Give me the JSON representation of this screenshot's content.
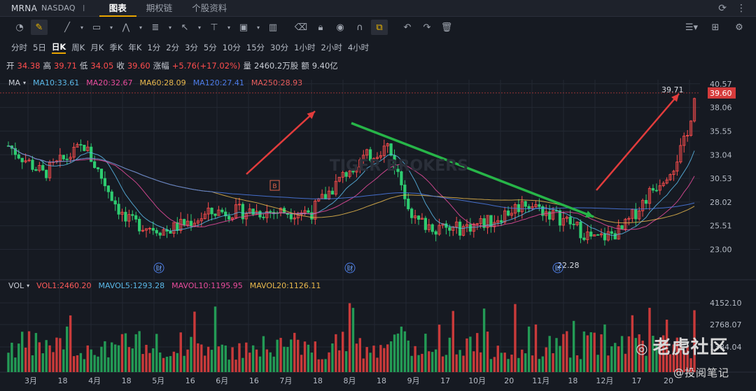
{
  "titlebar": {
    "symbol": "MRNA",
    "exchange": "NASDAQ",
    "divider": "I",
    "tabs": [
      "图表",
      "期权链",
      "个股资料"
    ],
    "active_tab": 0
  },
  "periods": {
    "items": [
      "分时",
      "5日",
      "日K",
      "周K",
      "月K",
      "季K",
      "年K",
      "1分",
      "2分",
      "3分",
      "5分",
      "10分",
      "15分",
      "30分",
      "1小时",
      "2小时",
      "4小时"
    ],
    "active": 2
  },
  "quote": {
    "open_label": "开",
    "open": "34.38",
    "high_label": "高",
    "high": "39.71",
    "low_label": "低",
    "low": "34.05",
    "close_label": "收",
    "close": "39.60",
    "change_label": "涨幅",
    "change": "+5.76(+17.02%)",
    "volume_label": "量",
    "volume": "2460.2万股",
    "amount_label": "额",
    "amount": "9.40亿"
  },
  "ma_legend": {
    "name": "MA",
    "items": [
      {
        "text": "MA10:33.61",
        "color": "#5ab8e8"
      },
      {
        "text": "MA20:32.67",
        "color": "#e84c9c"
      },
      {
        "text": "MA60:28.09",
        "color": "#e8b84c"
      },
      {
        "text": "MA120:27.41",
        "color": "#4c7ce8"
      },
      {
        "text": "MA250:28.93",
        "color": "#e85c5c"
      }
    ]
  },
  "vol_legend": {
    "name": "VOL",
    "items": [
      {
        "text": "VOL1:2460.20",
        "color": "#ff5a5a"
      },
      {
        "text": "MAVOL5:1293.28",
        "color": "#5ab8e8"
      },
      {
        "text": "MAVOL10:1195.95",
        "color": "#e84c9c"
      },
      {
        "text": "MAVOL20:1126.11",
        "color": "#e8b84c"
      }
    ]
  },
  "price_axis": {
    "ticks": [
      "40.57",
      "38.06",
      "35.55",
      "33.04",
      "30.53",
      "28.02",
      "25.51",
      "23.00"
    ],
    "current": "39.60"
  },
  "vol_axis": {
    "ticks": [
      "4152.10",
      "2768.07",
      "1384.04"
    ]
  },
  "x_axis": {
    "labels": [
      "3月",
      "18",
      "4月",
      "18",
      "5月",
      "16",
      "6月",
      "16",
      "7月",
      "18",
      "8月",
      "18",
      "9月",
      "17",
      "10月",
      "20",
      "11月",
      "18",
      "12月",
      "17",
      "20"
    ]
  },
  "annotations": {
    "high": "39.71",
    "low": "22.28",
    "earnings": "财",
    "buy": "B"
  },
  "watermark": {
    "center": "TIGER BROKERS",
    "brand": "老虎社区",
    "author": "@投阅笔记"
  },
  "colors": {
    "up": "#ff4d4d",
    "down": "#2ecc71",
    "background": "#161a22"
  }
}
